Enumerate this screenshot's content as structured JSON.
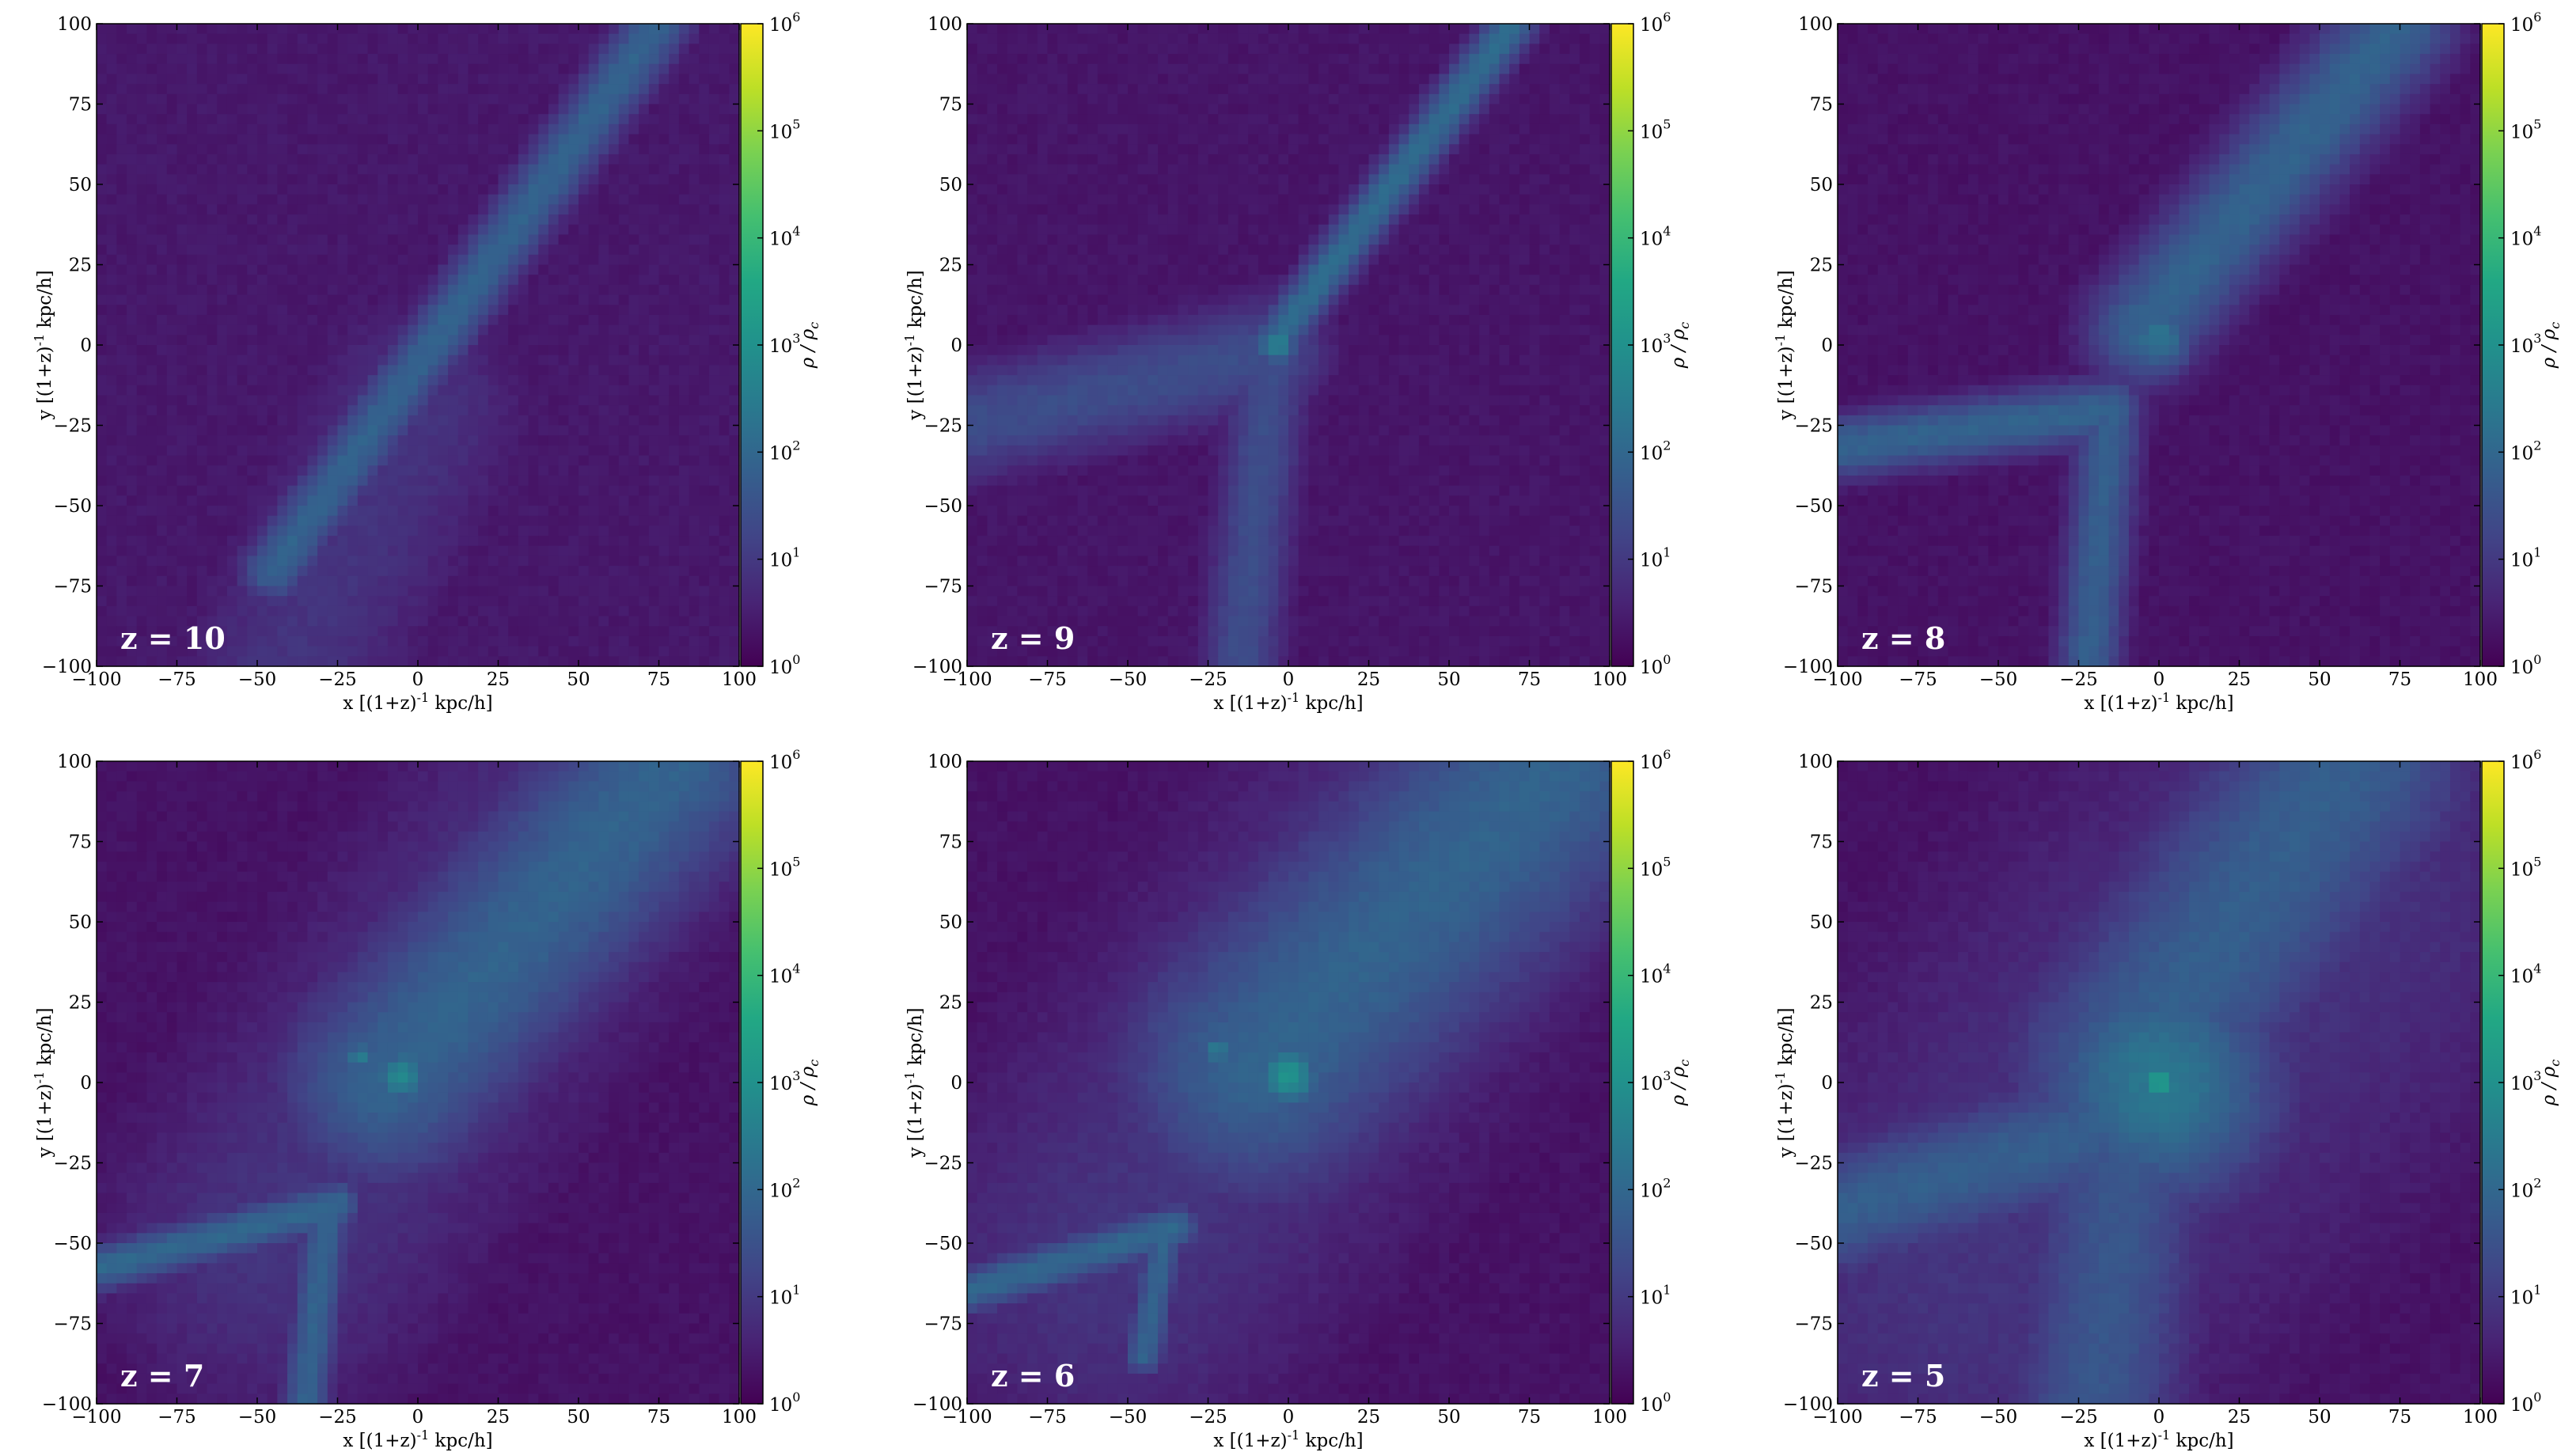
{
  "chart_data": [
    {
      "type": "heatmap",
      "panel_label": "z = 10",
      "xlabel": "x [(1+z)^{-1} kpc/h]",
      "ylabel": "y [(1+z)^{-1} kpc/h]",
      "colorbar_label": "ρ / ρ_c",
      "xlim": [
        -100,
        100
      ],
      "ylim": [
        -100,
        100
      ],
      "xticks": [
        -100,
        -75,
        -50,
        -25,
        0,
        25,
        50,
        75,
        100
      ],
      "yticks": [
        -100,
        -75,
        -50,
        -25,
        0,
        25,
        50,
        75,
        100
      ],
      "colorbar_scale": "log",
      "colorbar_range": [
        1,
        1000000
      ],
      "colorbar_ticks": [
        "10^0",
        "10^1",
        "10^2",
        "10^3",
        "10^4",
        "10^5",
        "10^6"
      ],
      "colormap": "viridis",
      "features": {
        "background_log_density": 0.4,
        "filaments": [
          {
            "from": [
              -45,
              -70
            ],
            "to": [
              75,
              100
            ],
            "width": 8,
            "log_density": 1.9
          }
        ],
        "broad_regions": [
          {
            "from": [
              -40,
              -100
            ],
            "to": [
              0,
              -20
            ],
            "width": 28,
            "log_density": 0.9
          }
        ],
        "knots": []
      }
    },
    {
      "type": "heatmap",
      "panel_label": "z = 9",
      "xlabel": "x [(1+z)^{-1} kpc/h]",
      "ylabel": "y [(1+z)^{-1} kpc/h]",
      "colorbar_label": "ρ / ρ_c",
      "xlim": [
        -100,
        100
      ],
      "ylim": [
        -100,
        100
      ],
      "xticks": [
        -100,
        -75,
        -50,
        -25,
        0,
        25,
        50,
        75,
        100
      ],
      "yticks": [
        -100,
        -75,
        -50,
        -25,
        0,
        25,
        50,
        75,
        100
      ],
      "colorbar_scale": "log",
      "colorbar_range": [
        1,
        1000000
      ],
      "colorbar_ticks": [
        "10^0",
        "10^1",
        "10^2",
        "10^3",
        "10^4",
        "10^5",
        "10^6"
      ],
      "colormap": "viridis",
      "features": {
        "background_log_density": 0.35,
        "filaments": [
          {
            "from": [
              -5,
              0
            ],
            "to": [
              70,
              100
            ],
            "width": 6,
            "log_density": 2.1
          },
          {
            "from": [
              -100,
              -25
            ],
            "to": [
              -5,
              -2
            ],
            "width": 14,
            "log_density": 1.4
          },
          {
            "from": [
              -5,
              -2
            ],
            "to": [
              -15,
              -100
            ],
            "width": 10,
            "log_density": 1.4
          }
        ],
        "broad_regions": [],
        "knots": [
          {
            "at": [
              -3,
              0
            ],
            "radius": 5,
            "log_density": 2.6
          }
        ]
      }
    },
    {
      "type": "heatmap",
      "panel_label": "z = 8",
      "xlabel": "x [(1+z)^{-1} kpc/h]",
      "ylabel": "y [(1+z)^{-1} kpc/h]",
      "colorbar_label": "ρ / ρ_c",
      "xlim": [
        -100,
        100
      ],
      "ylim": [
        -100,
        100
      ],
      "xticks": [
        -100,
        -75,
        -50,
        -25,
        0,
        25,
        50,
        75,
        100
      ],
      "yticks": [
        -100,
        -75,
        -50,
        -25,
        0,
        25,
        50,
        75,
        100
      ],
      "colorbar_scale": "log",
      "colorbar_range": [
        1,
        1000000
      ],
      "colorbar_ticks": [
        "10^0",
        "10^1",
        "10^2",
        "10^3",
        "10^4",
        "10^5",
        "10^6"
      ],
      "colormap": "viridis",
      "features": {
        "background_log_density": 0.3,
        "filaments": [
          {
            "from": [
              -5,
              5
            ],
            "to": [
              75,
              100
            ],
            "width": 14,
            "log_density": 1.9
          },
          {
            "from": [
              -100,
              -32
            ],
            "to": [
              -15,
              -20
            ],
            "width": 8,
            "log_density": 1.9
          },
          {
            "from": [
              -15,
              -20
            ],
            "to": [
              -22,
              -100
            ],
            "width": 8,
            "log_density": 1.8
          }
        ],
        "broad_regions": [],
        "knots": [
          {
            "at": [
              0,
              2
            ],
            "radius": 9,
            "log_density": 2.3
          }
        ]
      }
    },
    {
      "type": "heatmap",
      "panel_label": "z = 7",
      "xlabel": "x [(1+z)^{-1} kpc/h]",
      "ylabel": "y [(1+z)^{-1} kpc/h]",
      "colorbar_label": "ρ / ρ_c",
      "xlim": [
        -100,
        100
      ],
      "ylim": [
        -100,
        100
      ],
      "xticks": [
        -100,
        -75,
        -50,
        -25,
        0,
        25,
        50,
        75,
        100
      ],
      "yticks": [
        -100,
        -75,
        -50,
        -25,
        0,
        25,
        50,
        75,
        100
      ],
      "colorbar_scale": "log",
      "colorbar_range": [
        1,
        1000000
      ],
      "colorbar_ticks": [
        "10^0",
        "10^1",
        "10^2",
        "10^3",
        "10^4",
        "10^5",
        "10^6"
      ],
      "colormap": "viridis",
      "features": {
        "background_log_density": 0.3,
        "filaments": [
          {
            "from": [
              -10,
              0
            ],
            "to": [
              80,
              100
            ],
            "width": 26,
            "log_density": 1.9
          },
          {
            "from": [
              -100,
              -58
            ],
            "to": [
              -25,
              -38
            ],
            "width": 6,
            "log_density": 2.0
          },
          {
            "from": [
              -28,
              -38
            ],
            "to": [
              -35,
              -100
            ],
            "width": 6,
            "log_density": 1.9
          }
        ],
        "broad_regions": [
          {
            "from": [
              -45,
              -50
            ],
            "to": [
              50,
              80
            ],
            "width": 45,
            "log_density": 0.9
          }
        ],
        "knots": [
          {
            "at": [
              -5,
              2
            ],
            "radius": 7,
            "log_density": 2.8
          },
          {
            "at": [
              -18,
              8
            ],
            "radius": 4,
            "log_density": 2.6
          }
        ]
      }
    },
    {
      "type": "heatmap",
      "panel_label": "z = 6",
      "xlabel": "x [(1+z)^{-1} kpc/h]",
      "ylabel": "y [(1+z)^{-1} kpc/h]",
      "colorbar_label": "ρ / ρ_c",
      "xlim": [
        -100,
        100
      ],
      "ylim": [
        -100,
        100
      ],
      "xticks": [
        -100,
        -75,
        -50,
        -25,
        0,
        25,
        50,
        75,
        100
      ],
      "yticks": [
        -100,
        -75,
        -50,
        -25,
        0,
        25,
        50,
        75,
        100
      ],
      "colorbar_scale": "log",
      "colorbar_range": [
        1,
        1000000
      ],
      "colorbar_ticks": [
        "10^0",
        "10^1",
        "10^2",
        "10^3",
        "10^4",
        "10^5",
        "10^6"
      ],
      "colormap": "viridis",
      "features": {
        "background_log_density": 0.3,
        "filaments": [
          {
            "from": [
              -10,
              5
            ],
            "to": [
              85,
              100
            ],
            "width": 34,
            "log_density": 1.9
          },
          {
            "from": [
              -100,
              -65
            ],
            "to": [
              -35,
              -45
            ],
            "width": 6,
            "log_density": 2.0
          },
          {
            "from": [
              -38,
              -45
            ],
            "to": [
              -45,
              -85
            ],
            "width": 5,
            "log_density": 1.9
          }
        ],
        "broad_regions": [
          {
            "from": [
              -55,
              -55
            ],
            "to": [
              55,
              85
            ],
            "width": 55,
            "log_density": 0.9
          }
        ],
        "knots": [
          {
            "at": [
              0,
              2
            ],
            "radius": 8,
            "log_density": 3.1
          },
          {
            "at": [
              -22,
              10
            ],
            "radius": 4,
            "log_density": 2.6
          }
        ]
      }
    },
    {
      "type": "heatmap",
      "panel_label": "z = 5",
      "xlabel": "x [(1+z)^{-1} kpc/h]",
      "ylabel": "y [(1+z)^{-1} kpc/h]",
      "colorbar_label": "ρ / ρ_c",
      "xlim": [
        -100,
        100
      ],
      "ylim": [
        -100,
        100
      ],
      "xticks": [
        -100,
        -75,
        -50,
        -25,
        0,
        25,
        50,
        75,
        100
      ],
      "yticks": [
        -100,
        -75,
        -50,
        -25,
        0,
        25,
        50,
        75,
        100
      ],
      "colorbar_scale": "log",
      "colorbar_range": [
        1,
        1000000
      ],
      "colorbar_ticks": [
        "10^0",
        "10^1",
        "10^2",
        "10^3",
        "10^4",
        "10^5",
        "10^6"
      ],
      "colormap": "viridis",
      "features": {
        "background_log_density": 0.3,
        "filaments": [
          {
            "from": [
              -10,
              5
            ],
            "to": [
              60,
              100
            ],
            "width": 30,
            "log_density": 1.8
          },
          {
            "from": [
              -100,
              -40
            ],
            "to": [
              -20,
              -15
            ],
            "width": 16,
            "log_density": 1.8
          },
          {
            "from": [
              -10,
              -20
            ],
            "to": [
              -20,
              -100
            ],
            "width": 22,
            "log_density": 1.6
          }
        ],
        "broad_regions": [
          {
            "from": [
              -60,
              -60
            ],
            "to": [
              50,
              60
            ],
            "width": 70,
            "log_density": 0.9
          }
        ],
        "knots": [
          {
            "at": [
              0,
              0
            ],
            "radius": 30,
            "log_density": 2.4
          },
          {
            "at": [
              0,
              0
            ],
            "radius": 4,
            "log_density": 3.6
          }
        ]
      }
    }
  ]
}
